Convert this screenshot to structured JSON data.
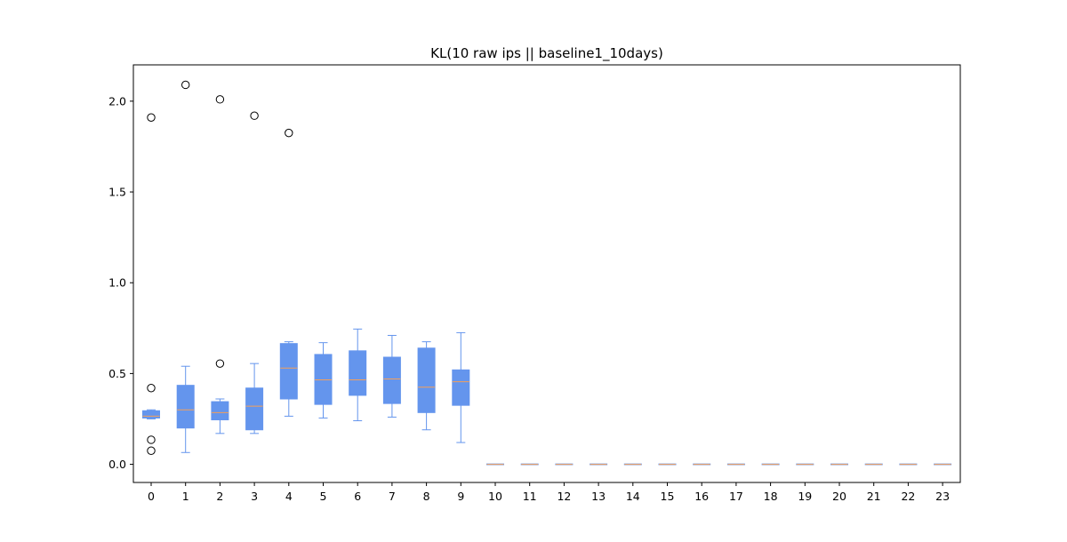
{
  "chart_data": {
    "type": "box",
    "title": "KL(10 raw ips || baseline1_10days)",
    "xlabel": "",
    "ylabel": "",
    "categories": [
      "0",
      "1",
      "2",
      "3",
      "4",
      "5",
      "6",
      "7",
      "8",
      "9",
      "10",
      "11",
      "12",
      "13",
      "14",
      "15",
      "16",
      "17",
      "18",
      "19",
      "20",
      "21",
      "22",
      "23"
    ],
    "ylim": [
      -0.1,
      2.2
    ],
    "yticks": [
      0.0,
      0.5,
      1.0,
      1.5,
      2.0
    ],
    "ytick_labels": [
      "0.0",
      "0.5",
      "1.0",
      "1.5",
      "2.0"
    ],
    "grid": false,
    "colors": {
      "box_fill": "#6495ED",
      "box_edge": "#6495ED",
      "median": "#F5A05A",
      "flier_edge": "#000000",
      "axes": "#000000"
    },
    "boxes": [
      {
        "label": "0",
        "whislo": 0.25,
        "q1": 0.255,
        "median": 0.265,
        "q3": 0.295,
        "whishi": 0.3,
        "fliers": [
          1.91,
          0.42,
          0.135,
          0.075
        ]
      },
      {
        "label": "1",
        "whislo": 0.065,
        "q1": 0.2,
        "median": 0.3,
        "q3": 0.435,
        "whishi": 0.54,
        "fliers": [
          2.09
        ]
      },
      {
        "label": "2",
        "whislo": 0.17,
        "q1": 0.245,
        "median": 0.285,
        "q3": 0.345,
        "whishi": 0.36,
        "fliers": [
          2.01,
          0.555
        ]
      },
      {
        "label": "3",
        "whislo": 0.17,
        "q1": 0.19,
        "median": 0.32,
        "q3": 0.42,
        "whishi": 0.555,
        "fliers": [
          1.92
        ]
      },
      {
        "label": "4",
        "whislo": 0.265,
        "q1": 0.36,
        "median": 0.53,
        "q3": 0.665,
        "whishi": 0.675,
        "fliers": [
          1.825
        ]
      },
      {
        "label": "5",
        "whislo": 0.255,
        "q1": 0.33,
        "median": 0.465,
        "q3": 0.605,
        "whishi": 0.67,
        "fliers": []
      },
      {
        "label": "6",
        "whislo": 0.24,
        "q1": 0.38,
        "median": 0.465,
        "q3": 0.625,
        "whishi": 0.745,
        "fliers": []
      },
      {
        "label": "7",
        "whislo": 0.26,
        "q1": 0.335,
        "median": 0.47,
        "q3": 0.59,
        "whishi": 0.71,
        "fliers": []
      },
      {
        "label": "8",
        "whislo": 0.19,
        "q1": 0.285,
        "median": 0.425,
        "q3": 0.64,
        "whishi": 0.675,
        "fliers": []
      },
      {
        "label": "9",
        "whislo": 0.12,
        "q1": 0.325,
        "median": 0.455,
        "q3": 0.52,
        "whishi": 0.725,
        "fliers": []
      },
      {
        "label": "10",
        "whislo": 0,
        "q1": 0,
        "median": 0,
        "q3": 0,
        "whishi": 0,
        "fliers": []
      },
      {
        "label": "11",
        "whislo": 0,
        "q1": 0,
        "median": 0,
        "q3": 0,
        "whishi": 0,
        "fliers": []
      },
      {
        "label": "12",
        "whislo": 0,
        "q1": 0,
        "median": 0,
        "q3": 0,
        "whishi": 0,
        "fliers": []
      },
      {
        "label": "13",
        "whislo": 0,
        "q1": 0,
        "median": 0,
        "q3": 0,
        "whishi": 0,
        "fliers": []
      },
      {
        "label": "14",
        "whislo": 0,
        "q1": 0,
        "median": 0,
        "q3": 0,
        "whishi": 0,
        "fliers": []
      },
      {
        "label": "15",
        "whislo": 0,
        "q1": 0,
        "median": 0,
        "q3": 0,
        "whishi": 0,
        "fliers": []
      },
      {
        "label": "16",
        "whislo": 0,
        "q1": 0,
        "median": 0,
        "q3": 0,
        "whishi": 0,
        "fliers": []
      },
      {
        "label": "17",
        "whislo": 0,
        "q1": 0,
        "median": 0,
        "q3": 0,
        "whishi": 0,
        "fliers": []
      },
      {
        "label": "18",
        "whislo": 0,
        "q1": 0,
        "median": 0,
        "q3": 0,
        "whishi": 0,
        "fliers": []
      },
      {
        "label": "19",
        "whislo": 0,
        "q1": 0,
        "median": 0,
        "q3": 0,
        "whishi": 0,
        "fliers": []
      },
      {
        "label": "20",
        "whislo": 0,
        "q1": 0,
        "median": 0,
        "q3": 0,
        "whishi": 0,
        "fliers": []
      },
      {
        "label": "21",
        "whislo": 0,
        "q1": 0,
        "median": 0,
        "q3": 0,
        "whishi": 0,
        "fliers": []
      },
      {
        "label": "22",
        "whislo": 0,
        "q1": 0,
        "median": 0,
        "q3": 0,
        "whishi": 0,
        "fliers": []
      },
      {
        "label": "23",
        "whislo": 0,
        "q1": 0,
        "median": 0,
        "q3": 0,
        "whishi": 0,
        "fliers": []
      }
    ]
  }
}
